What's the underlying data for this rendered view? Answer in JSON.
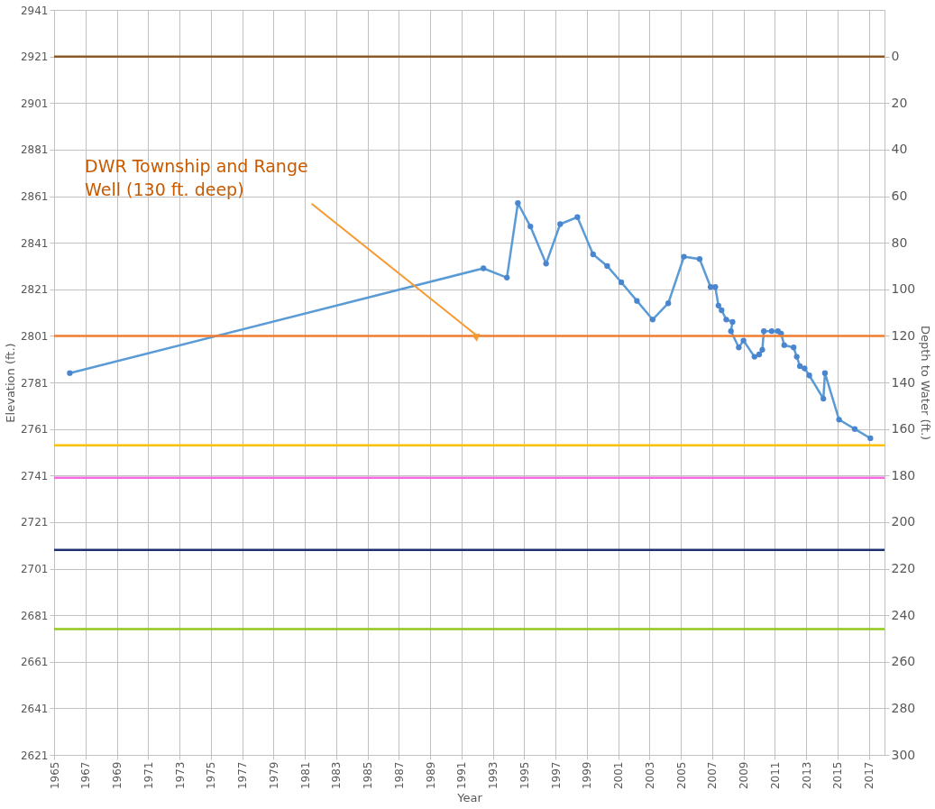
{
  "chart_data": {
    "type": "line",
    "xlabel": "Year",
    "ylabel": "Elevation (ft.)",
    "y2label": "Depth to Water (ft.)",
    "x": [
      1966.0,
      1992.4,
      1993.9,
      1994.6,
      1995.4,
      1996.4,
      1997.3,
      1998.4,
      1999.4,
      2000.3,
      2001.2,
      2002.2,
      2003.2,
      2004.2,
      2005.2,
      2006.2,
      2006.9,
      2007.2,
      2007.4,
      2007.6,
      2007.9,
      2008.3,
      2008.2,
      2008.7,
      2009.0,
      2009.7,
      2010.0,
      2010.2,
      2010.3,
      2010.8,
      2011.2,
      2011.4,
      2011.6,
      2012.2,
      2012.4,
      2012.6,
      2012.9,
      2013.2,
      2014.1,
      2014.2,
      2015.1,
      2016.1,
      2017.1
    ],
    "series": [
      {
        "color": "#4a86d0",
        "values": [
          2785,
          2830,
          2826,
          2858,
          2848,
          2832,
          2849,
          2852,
          2836,
          2831,
          2824,
          2816,
          2808,
          2815,
          2835,
          2834,
          2822,
          2822,
          2814,
          2812,
          2808,
          2807,
          2803,
          2796,
          2799,
          2792,
          2793,
          2795,
          2803,
          2803,
          2803,
          2802,
          2797,
          2796,
          2792,
          2788,
          2787,
          2784,
          2774,
          2785,
          2765,
          2761,
          2757
        ]
      }
    ],
    "xlim": [
      1965,
      2018
    ],
    "xticks": [
      1965,
      1967,
      1969,
      1971,
      1973,
      1975,
      1977,
      1979,
      1981,
      1983,
      1985,
      1987,
      1989,
      1991,
      1993,
      1995,
      1997,
      1999,
      2001,
      2003,
      2005,
      2007,
      2009,
      2011,
      2013,
      2015,
      2017
    ],
    "ylim": [
      2621,
      2941
    ],
    "yticks": [
      2621,
      2641,
      2661,
      2681,
      2701,
      2721,
      2741,
      2761,
      2781,
      2801,
      2821,
      2841,
      2861,
      2881,
      2901,
      2921,
      2941
    ],
    "y2lim": [
      300,
      -20
    ],
    "y2ticks": [
      0,
      20,
      40,
      60,
      80,
      100,
      120,
      140,
      160,
      180,
      200,
      220,
      240,
      260,
      280,
      300
    ],
    "ref_lines": [
      {
        "axis": "y",
        "value": 2921,
        "color": "#8c5a2a"
      },
      {
        "axis": "y",
        "value": 2801,
        "color": "#f07c30"
      },
      {
        "axis": "y",
        "value": 2754,
        "color": "#ffc000"
      },
      {
        "axis": "y",
        "value": 2740,
        "color": "#f06ee0"
      },
      {
        "axis": "y",
        "value": 2709,
        "color": "#1f3070"
      },
      {
        "axis": "y",
        "value": 2675,
        "color": "#92c820"
      }
    ],
    "annotations": [
      {
        "text": "DWR Township and Range Well (130 ft. deep)",
        "x": 1992,
        "y": 2801
      }
    ],
    "grid": true,
    "marker": "circle",
    "line_style": "solid"
  }
}
